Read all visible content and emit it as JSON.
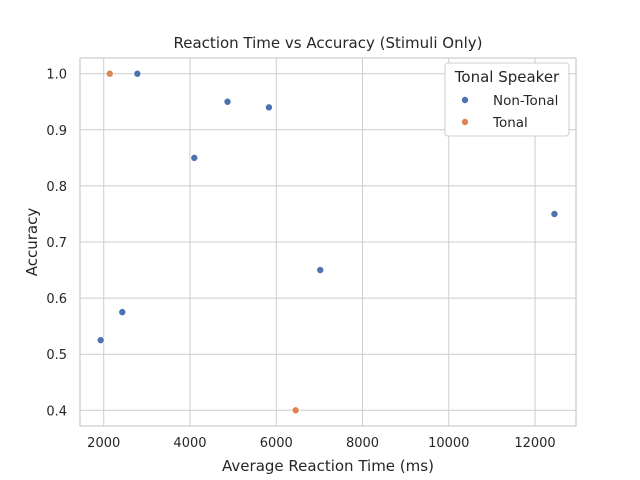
{
  "chart_data": {
    "type": "scatter",
    "title": "Reaction Time vs Accuracy (Stimuli Only)",
    "xlabel": "Average Reaction Time (ms)",
    "ylabel": "Accuracy",
    "xlim": [
      1450,
      12950
    ],
    "ylim": [
      0.372,
      1.028
    ],
    "xticks": [
      2000,
      4000,
      6000,
      8000,
      10000,
      12000
    ],
    "yticks": [
      0.4,
      0.5,
      0.6,
      0.7,
      0.8,
      0.9,
      1.0
    ],
    "xtick_labels": [
      "2000",
      "4000",
      "6000",
      "8000",
      "10000",
      "12000"
    ],
    "ytick_labels": [
      "0.4",
      "0.5",
      "0.6",
      "0.7",
      "0.8",
      "0.9",
      "1.0"
    ],
    "grid": true,
    "legend": {
      "title": "Tonal Speaker",
      "placement": "top-right",
      "entries": [
        "Non-Tonal",
        "Tonal"
      ]
    },
    "series": [
      {
        "name": "Non-Tonal",
        "color": "#4c72b0",
        "points": [
          {
            "x": 1930,
            "y": 0.525
          },
          {
            "x": 2430,
            "y": 0.575
          },
          {
            "x": 2780,
            "y": 1.0
          },
          {
            "x": 4100,
            "y": 0.85
          },
          {
            "x": 4870,
            "y": 0.95
          },
          {
            "x": 5830,
            "y": 0.94
          },
          {
            "x": 7020,
            "y": 0.65
          },
          {
            "x": 12450,
            "y": 0.75
          }
        ]
      },
      {
        "name": "Tonal",
        "color": "#dd8452",
        "points": [
          {
            "x": 2140,
            "y": 1.0
          },
          {
            "x": 6450,
            "y": 0.4
          }
        ]
      }
    ]
  }
}
